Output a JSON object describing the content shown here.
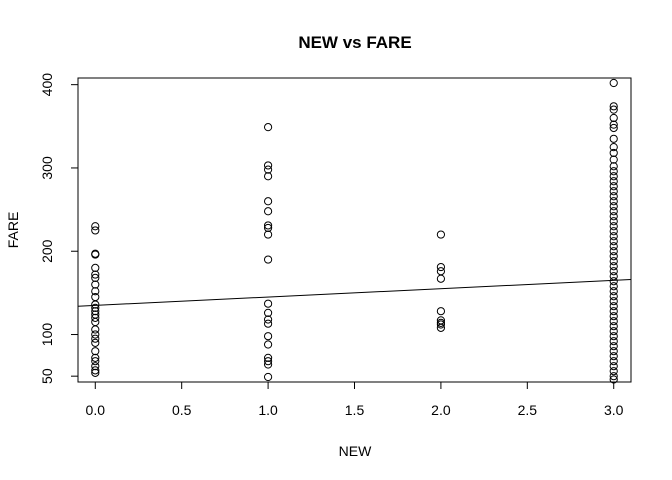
{
  "chart_data": {
    "type": "scatter",
    "title": "NEW vs FARE",
    "xlabel": "NEW",
    "ylabel": "FARE",
    "xlim": [
      -0.1,
      3.1
    ],
    "ylim": [
      43,
      408
    ],
    "xticks": [
      0.0,
      0.5,
      1.0,
      1.5,
      2.0,
      2.5,
      3.0
    ],
    "xtick_labels": [
      "0.0",
      "0.5",
      "1.0",
      "1.5",
      "2.0",
      "2.5",
      "3.0"
    ],
    "yticks": [
      50,
      100,
      200,
      300,
      400
    ],
    "ytick_labels": [
      "50",
      "100",
      "200",
      "300",
      "400"
    ],
    "grid": false,
    "legend": "none",
    "fit_line": {
      "intercept": 135,
      "slope": 10
    },
    "points": [
      {
        "x": 0,
        "y": 230
      },
      {
        "x": 0,
        "y": 225
      },
      {
        "x": 0,
        "y": 197
      },
      {
        "x": 0,
        "y": 196
      },
      {
        "x": 0,
        "y": 180
      },
      {
        "x": 0,
        "y": 172
      },
      {
        "x": 0,
        "y": 168
      },
      {
        "x": 0,
        "y": 160
      },
      {
        "x": 0,
        "y": 152
      },
      {
        "x": 0,
        "y": 145
      },
      {
        "x": 0,
        "y": 136
      },
      {
        "x": 0,
        "y": 132
      },
      {
        "x": 0,
        "y": 128
      },
      {
        "x": 0,
        "y": 124
      },
      {
        "x": 0,
        "y": 120
      },
      {
        "x": 0,
        "y": 115
      },
      {
        "x": 0,
        "y": 106
      },
      {
        "x": 0,
        "y": 100
      },
      {
        "x": 0,
        "y": 95
      },
      {
        "x": 0,
        "y": 90
      },
      {
        "x": 0,
        "y": 80
      },
      {
        "x": 0,
        "y": 72
      },
      {
        "x": 0,
        "y": 68
      },
      {
        "x": 0,
        "y": 62
      },
      {
        "x": 0,
        "y": 57
      },
      {
        "x": 0,
        "y": 54
      },
      {
        "x": 1,
        "y": 349
      },
      {
        "x": 1,
        "y": 303
      },
      {
        "x": 1,
        "y": 298
      },
      {
        "x": 1,
        "y": 290
      },
      {
        "x": 1,
        "y": 260
      },
      {
        "x": 1,
        "y": 248
      },
      {
        "x": 1,
        "y": 231
      },
      {
        "x": 1,
        "y": 228
      },
      {
        "x": 1,
        "y": 220
      },
      {
        "x": 1,
        "y": 190
      },
      {
        "x": 1,
        "y": 137
      },
      {
        "x": 1,
        "y": 126
      },
      {
        "x": 1,
        "y": 118
      },
      {
        "x": 1,
        "y": 113
      },
      {
        "x": 1,
        "y": 98
      },
      {
        "x": 1,
        "y": 88
      },
      {
        "x": 1,
        "y": 72
      },
      {
        "x": 1,
        "y": 68
      },
      {
        "x": 1,
        "y": 64
      },
      {
        "x": 1,
        "y": 49
      },
      {
        "x": 2,
        "y": 220
      },
      {
        "x": 2,
        "y": 181
      },
      {
        "x": 2,
        "y": 176
      },
      {
        "x": 2,
        "y": 167
      },
      {
        "x": 2,
        "y": 128
      },
      {
        "x": 2,
        "y": 117
      },
      {
        "x": 2,
        "y": 114
      },
      {
        "x": 2,
        "y": 112
      },
      {
        "x": 2,
        "y": 108
      },
      {
        "x": 3,
        "y": 402
      },
      {
        "x": 3,
        "y": 374
      },
      {
        "x": 3,
        "y": 370
      },
      {
        "x": 3,
        "y": 360
      },
      {
        "x": 3,
        "y": 352
      },
      {
        "x": 3,
        "y": 348
      },
      {
        "x": 3,
        "y": 335
      },
      {
        "x": 3,
        "y": 325
      },
      {
        "x": 3,
        "y": 318
      },
      {
        "x": 3,
        "y": 310
      },
      {
        "x": 3,
        "y": 302
      },
      {
        "x": 3,
        "y": 296
      },
      {
        "x": 3,
        "y": 290
      },
      {
        "x": 3,
        "y": 284
      },
      {
        "x": 3,
        "y": 278
      },
      {
        "x": 3,
        "y": 272
      },
      {
        "x": 3,
        "y": 266
      },
      {
        "x": 3,
        "y": 260
      },
      {
        "x": 3,
        "y": 254
      },
      {
        "x": 3,
        "y": 248
      },
      {
        "x": 3,
        "y": 242
      },
      {
        "x": 3,
        "y": 236
      },
      {
        "x": 3,
        "y": 230
      },
      {
        "x": 3,
        "y": 224
      },
      {
        "x": 3,
        "y": 218
      },
      {
        "x": 3,
        "y": 212
      },
      {
        "x": 3,
        "y": 206
      },
      {
        "x": 3,
        "y": 200
      },
      {
        "x": 3,
        "y": 194
      },
      {
        "x": 3,
        "y": 188
      },
      {
        "x": 3,
        "y": 182
      },
      {
        "x": 3,
        "y": 176
      },
      {
        "x": 3,
        "y": 170
      },
      {
        "x": 3,
        "y": 164
      },
      {
        "x": 3,
        "y": 158
      },
      {
        "x": 3,
        "y": 152
      },
      {
        "x": 3,
        "y": 146
      },
      {
        "x": 3,
        "y": 140
      },
      {
        "x": 3,
        "y": 134
      },
      {
        "x": 3,
        "y": 128
      },
      {
        "x": 3,
        "y": 122
      },
      {
        "x": 3,
        "y": 116
      },
      {
        "x": 3,
        "y": 110
      },
      {
        "x": 3,
        "y": 104
      },
      {
        "x": 3,
        "y": 98
      },
      {
        "x": 3,
        "y": 92
      },
      {
        "x": 3,
        "y": 86
      },
      {
        "x": 3,
        "y": 80
      },
      {
        "x": 3,
        "y": 74
      },
      {
        "x": 3,
        "y": 68
      },
      {
        "x": 3,
        "y": 62
      },
      {
        "x": 3,
        "y": 56
      },
      {
        "x": 3,
        "y": 50
      },
      {
        "x": 3,
        "y": 46
      }
    ]
  }
}
